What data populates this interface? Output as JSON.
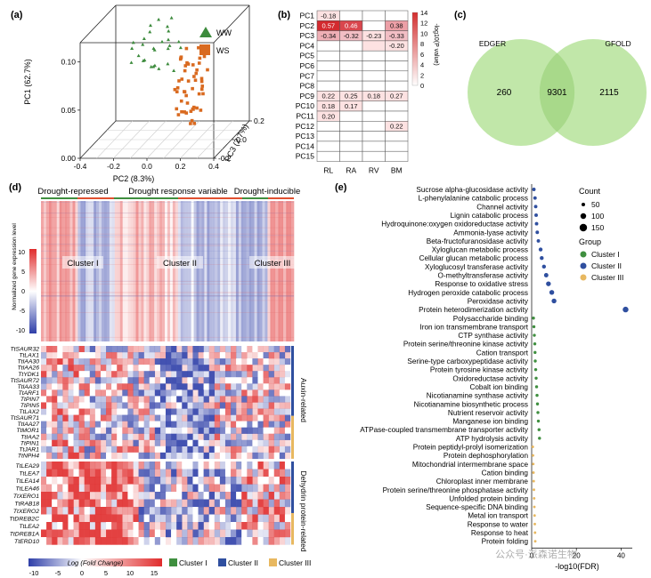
{
  "panel_labels": {
    "a": "(a)",
    "b": "(b)",
    "c": "(c)",
    "d": "(d)",
    "e": "(e)"
  },
  "colors": {
    "ww": "#3d8b3d",
    "ws": "#d96a20",
    "cluster1": "#3f8f3f",
    "cluster2": "#2f4f9f",
    "cluster3": "#e8b860",
    "venn": "#b6e39a"
  },
  "chart_data": [
    {
      "type": "scatter",
      "panel": "a",
      "xlabel": "PC2 (8.3%)",
      "ylabel": "PC1 (62.7%)",
      "zlabel": "PC3 (2.7%)",
      "xticks": [
        "-0.4",
        "-0.2",
        "0.0",
        "0.2",
        "0.4"
      ],
      "yticks": [
        "0.00",
        "0.05",
        "0.10"
      ],
      "zticks": [
        "-0.2",
        "0.0",
        "0.2"
      ],
      "series": [
        {
          "name": "WW",
          "marker": "triangle",
          "points": [
            [
              -0.1,
              0.11,
              0.02
            ],
            [
              -0.15,
              0.1,
              0.05
            ],
            [
              -0.05,
              0.095,
              -0.02
            ],
            [
              -0.12,
              0.085,
              0.1
            ],
            [
              -0.02,
              0.105,
              0.08
            ],
            [
              -0.08,
              0.09,
              0.12
            ],
            [
              0.0,
              0.1,
              0.04
            ],
            [
              -0.18,
              0.09,
              0.09
            ],
            [
              -0.06,
              0.08,
              0.15
            ],
            [
              -0.1,
              0.07,
              0.06
            ],
            [
              -0.2,
              0.08,
              0.0
            ],
            [
              -0.14,
              0.065,
              0.11
            ],
            [
              -0.04,
              0.085,
              0.13
            ],
            [
              -0.09,
              0.115,
              0.1
            ],
            [
              0.02,
              0.09,
              0.12
            ],
            [
              -0.16,
              0.105,
              0.14
            ],
            [
              -0.22,
              0.095,
              0.06
            ],
            [
              -0.07,
              0.075,
              0.02
            ],
            [
              -0.11,
              0.06,
              0.14
            ],
            [
              -0.03,
              0.07,
              0.09
            ],
            [
              -0.25,
              0.085,
              0.1
            ],
            [
              -0.13,
              0.092,
              -0.05
            ],
            [
              0.01,
              0.08,
              0.16
            ],
            [
              -0.05,
              0.11,
              0.17
            ],
            [
              -0.19,
              0.07,
              0.13
            ],
            [
              -0.08,
              0.1,
              0.18
            ],
            [
              -0.15,
              0.078,
              0.04
            ],
            [
              -0.01,
              0.06,
              0.12
            ]
          ]
        },
        {
          "name": "WS",
          "marker": "square",
          "points": [
            [
              0.05,
              0.08,
              0.15
            ],
            [
              0.08,
              0.07,
              0.1
            ],
            [
              0.1,
              0.06,
              0.2
            ],
            [
              0.12,
              0.05,
              0.12
            ],
            [
              0.06,
              0.055,
              0.08
            ],
            [
              0.14,
              0.04,
              0.16
            ],
            [
              0.09,
              0.045,
              0.05
            ],
            [
              0.11,
              0.03,
              0.18
            ],
            [
              0.07,
              0.035,
              0.11
            ],
            [
              0.13,
              0.025,
              0.07
            ],
            [
              0.04,
              0.06,
              0.19
            ],
            [
              0.15,
              0.05,
              0.03
            ],
            [
              0.1,
              0.02,
              0.14
            ],
            [
              0.03,
              0.045,
              0.09
            ],
            [
              0.08,
              0.015,
              0.17
            ],
            [
              0.12,
              0.065,
              0.22
            ],
            [
              0.06,
              0.03,
              0.02
            ],
            [
              0.16,
              0.035,
              0.13
            ],
            [
              0.05,
              0.02,
              0.06
            ],
            [
              0.09,
              0.075,
              0.21
            ],
            [
              0.11,
              0.01,
              0.1
            ],
            [
              0.02,
              0.07,
              0.14
            ],
            [
              0.14,
              0.06,
              0.09
            ],
            [
              0.07,
              0.05,
              0.23
            ],
            [
              0.1,
              0.04,
              0.0
            ],
            [
              0.13,
              0.015,
              0.16
            ],
            [
              0.04,
              0.035,
              0.15
            ],
            [
              0.08,
              0.025,
              0.04
            ],
            [
              0.12,
              0.045,
              0.19
            ],
            [
              0.06,
              0.065,
              0.12
            ],
            [
              0.15,
              0.025,
              0.08
            ],
            [
              0.03,
              0.055,
              0.17
            ],
            [
              0.09,
              0.005,
              0.12
            ],
            [
              0.11,
              0.055,
              0.06
            ],
            [
              0.05,
              0.01,
              0.2
            ],
            [
              0.07,
              0.08,
              0.05
            ],
            [
              0.13,
              0.07,
              0.15
            ],
            [
              0.1,
              0.03,
              0.23
            ],
            [
              0.08,
              0.06,
              0.01
            ],
            [
              0.02,
              0.04,
              0.1
            ],
            [
              0.16,
              0.055,
              0.18
            ],
            [
              0.06,
              0.015,
              0.13
            ],
            [
              0.12,
              0.035,
              0.03
            ],
            [
              0.04,
              0.075,
              0.11
            ],
            [
              0.09,
              0.05,
              0.16
            ],
            [
              0.14,
              0.01,
              0.07
            ],
            [
              0.11,
              0.04,
              0.21
            ],
            [
              0.07,
              0.02,
              0.09
            ],
            [
              0.05,
              0.05,
              0.02
            ],
            [
              0.1,
              0.065,
              0.13
            ]
          ]
        }
      ],
      "legend": [
        "WW",
        "WS"
      ]
    },
    {
      "type": "heatmap",
      "panel": "b",
      "rows": [
        "PC1",
        "PC2",
        "PC3",
        "PC4",
        "PC5",
        "PC6",
        "PC7",
        "PC8",
        "PC9",
        "PC10",
        "PC11",
        "PC12",
        "PC13",
        "PC14",
        "PC15"
      ],
      "cols": [
        "RL",
        "RA",
        "RV",
        "BM"
      ],
      "values": [
        [
          -0.18,
          null,
          null,
          null
        ],
        [
          0.57,
          0.46,
          null,
          0.38
        ],
        [
          -0.34,
          -0.32,
          -0.23,
          -0.33
        ],
        [
          null,
          null,
          null,
          -0.2
        ],
        [
          null,
          null,
          null,
          null
        ],
        [
          null,
          null,
          null,
          null
        ],
        [
          null,
          null,
          null,
          null
        ],
        [
          null,
          null,
          null,
          null
        ],
        [
          0.22,
          0.25,
          0.18,
          0.27
        ],
        [
          0.18,
          0.17,
          null,
          null
        ],
        [
          0.2,
          null,
          null,
          null
        ],
        [
          null,
          null,
          null,
          0.22
        ],
        [
          null,
          null,
          null,
          null
        ],
        [
          null,
          null,
          null,
          null
        ],
        [
          null,
          null,
          null,
          null
        ]
      ],
      "labels": [
        [
          "-0.18",
          "",
          "",
          ""
        ],
        [
          "0.57",
          "0.46",
          "",
          "0.38"
        ],
        [
          "-0.34",
          "-0.32",
          "-0.23",
          "-0.33"
        ],
        [
          "",
          "",
          "",
          "-0.20"
        ],
        [
          "",
          "",
          "",
          ""
        ],
        [
          "",
          "",
          "",
          ""
        ],
        [
          "",
          "",
          "",
          ""
        ],
        [
          "",
          "",
          "",
          ""
        ],
        [
          "0.22",
          "0.25",
          "0.18",
          "0.27"
        ],
        [
          "0.18",
          "0.17",
          "",
          ""
        ],
        [
          "0.20",
          "",
          "",
          ""
        ],
        [
          "",
          "",
          "",
          "0.22"
        ],
        [
          "",
          "",
          "",
          ""
        ],
        [
          "",
          "",
          "",
          ""
        ],
        [
          "",
          "",
          "",
          ""
        ]
      ],
      "neglog10p": [
        [
          3,
          0,
          0,
          0
        ],
        [
          14,
          12,
          0,
          6
        ],
        [
          5,
          4,
          2,
          4
        ],
        [
          0,
          0,
          1,
          2
        ],
        [
          0,
          0,
          0,
          0
        ],
        [
          0,
          0,
          0,
          0
        ],
        [
          0,
          0,
          0,
          0
        ],
        [
          0,
          0,
          0,
          0
        ],
        [
          2,
          2,
          1,
          2
        ],
        [
          1,
          1,
          0,
          0
        ],
        [
          2,
          0,
          0,
          0
        ],
        [
          0,
          0,
          0,
          2
        ],
        [
          0,
          0,
          0,
          0
        ],
        [
          0,
          0,
          0,
          0
        ],
        [
          0,
          0,
          0,
          0
        ]
      ],
      "colorbar_label": "-log10(P value)",
      "colorbar_ticks": [
        "14",
        "12",
        "10",
        "8",
        "6",
        "4",
        "2",
        "0"
      ]
    },
    {
      "type": "venn",
      "panel": "c",
      "sets": [
        "EDGER",
        "GFOLD"
      ],
      "left_only": "260",
      "both": "9301",
      "right_only": "2115"
    },
    {
      "type": "heatmap",
      "panel": "d",
      "groups": [
        "Drought-repressed",
        "Drought response variable",
        "Drought-inducible"
      ],
      "clusters": [
        "Cluster I",
        "Cluster II",
        "Cluster III"
      ],
      "colorbar_label": "Normalized gene expression level",
      "colorbar_ticks": [
        "10",
        "5",
        "0",
        "-5",
        "-10"
      ],
      "auxin_genes": [
        "TtSAUR32",
        "TtLAX1",
        "TtIAA30",
        "TtIAA26",
        "TtYDK1",
        "TtSAUR72",
        "TtIAA33",
        "TtARF1",
        "TtPIN7",
        "TtPIN5",
        "TtLAX2",
        "TtSAUR71",
        "TtIAA27",
        "TtMOR1",
        "TtIAA2",
        "TtPIN1",
        "TtJAR1",
        "TtNPH4"
      ],
      "auxin_label": "Auxin-related",
      "dehydrin_genes": [
        "TtLEA29",
        "TtLEA7",
        "TtLEA14",
        "TtLEA46",
        "TtXERO1",
        "TtRAB18",
        "TtXERO2",
        "TtDREB2C",
        "TtLEA2",
        "TtDREB1A",
        "TtERD10"
      ],
      "dehydrin_label": "Dehydrin protein-related",
      "fold_label": "Log (Fold Change)",
      "fold_ticks": [
        "-10",
        "-5",
        "0",
        "5",
        "10",
        "15"
      ],
      "legend": [
        "Cluster I",
        "Cluster II",
        "Cluster III"
      ]
    },
    {
      "type": "scatter",
      "panel": "e",
      "xlabel": "-log10(FDR)",
      "xticks": [
        "0",
        "20",
        "40"
      ],
      "xlim": [
        0,
        45
      ],
      "terms": [
        {
          "term": "Sucrose alpha-glucosidase activity",
          "cluster": 2,
          "x": 1.0,
          "count": 30
        },
        {
          "term": "L-phenylalanine catabolic process",
          "cluster": 2,
          "x": 1.5,
          "count": 30
        },
        {
          "term": "Channel activity",
          "cluster": 2,
          "x": 1.8,
          "count": 30
        },
        {
          "term": "Lignin catabolic process",
          "cluster": 2,
          "x": 2.0,
          "count": 30
        },
        {
          "term": "Hydroquinone:oxygen oxidoreductase activity",
          "cluster": 2,
          "x": 2.2,
          "count": 30
        },
        {
          "term": "Ammonia-lyase activity",
          "cluster": 2,
          "x": 2.5,
          "count": 30
        },
        {
          "term": "Beta-fructofuranosidase activity",
          "cluster": 2,
          "x": 3.0,
          "count": 30
        },
        {
          "term": "Xyloglucan metabolic process",
          "cluster": 2,
          "x": 4.0,
          "count": 40
        },
        {
          "term": "Cellular glucan metabolic process",
          "cluster": 2,
          "x": 4.5,
          "count": 40
        },
        {
          "term": "Xyloglucosyl transferase activity",
          "cluster": 2,
          "x": 5.5,
          "count": 40
        },
        {
          "term": "O-methyltransferase activity",
          "cluster": 2,
          "x": 6.5,
          "count": 50
        },
        {
          "term": "Response to oxidative stress",
          "cluster": 2,
          "x": 7.5,
          "count": 60
        },
        {
          "term": "Hydrogen peroxide catabolic process",
          "cluster": 2,
          "x": 9.0,
          "count": 60
        },
        {
          "term": "Peroxidase activity",
          "cluster": 2,
          "x": 10.0,
          "count": 60
        },
        {
          "term": "Protein heterodimerization activity",
          "cluster": 2,
          "x": 42.0,
          "count": 80
        },
        {
          "term": "Polysaccharide binding",
          "cluster": 1,
          "x": 0.8,
          "count": 20
        },
        {
          "term": "Iron ion transmembrane transport",
          "cluster": 1,
          "x": 1.0,
          "count": 20
        },
        {
          "term": "CTP synthase activity",
          "cluster": 1,
          "x": 1.2,
          "count": 20
        },
        {
          "term": "Protein serine/threonine kinase activity",
          "cluster": 1,
          "x": 1.4,
          "count": 20
        },
        {
          "term": "Cation transport",
          "cluster": 1,
          "x": 1.5,
          "count": 20
        },
        {
          "term": "Serine-type carboxypeptidase activity",
          "cluster": 1,
          "x": 1.6,
          "count": 20
        },
        {
          "term": "Protein tyrosine kinase activity",
          "cluster": 1,
          "x": 1.8,
          "count": 20
        },
        {
          "term": "Oxidoreductase activity",
          "cluster": 1,
          "x": 2.0,
          "count": 20
        },
        {
          "term": "Cobalt ion binding",
          "cluster": 1,
          "x": 2.2,
          "count": 20
        },
        {
          "term": "Nicotianamine synthase activity",
          "cluster": 1,
          "x": 2.4,
          "count": 20
        },
        {
          "term": "Nicotianamine biosynthetic process",
          "cluster": 1,
          "x": 2.6,
          "count": 20
        },
        {
          "term": "Nutrient reservoir activity",
          "cluster": 1,
          "x": 2.8,
          "count": 20
        },
        {
          "term": "Manganese ion binding",
          "cluster": 1,
          "x": 3.0,
          "count": 20
        },
        {
          "term": "ATPase-coupled transmembrane transporter activity",
          "cluster": 1,
          "x": 3.3,
          "count": 20
        },
        {
          "term": "ATP hydrolysis activity",
          "cluster": 1,
          "x": 3.5,
          "count": 20
        },
        {
          "term": "Protein peptidyl-prolyl isomerization",
          "cluster": 3,
          "x": 0.5,
          "count": 10
        },
        {
          "term": "Protein dephosphorylation",
          "cluster": 3,
          "x": 0.6,
          "count": 10
        },
        {
          "term": "Mitochondrial intermembrane space",
          "cluster": 3,
          "x": 0.7,
          "count": 10
        },
        {
          "term": "Cation binding",
          "cluster": 3,
          "x": 0.8,
          "count": 10
        },
        {
          "term": "Chloroplast inner membrane",
          "cluster": 3,
          "x": 0.9,
          "count": 10
        },
        {
          "term": "Protein serine/threonine phosphatase activity",
          "cluster": 3,
          "x": 1.0,
          "count": 10
        },
        {
          "term": "Unfolded protein binding",
          "cluster": 3,
          "x": 1.1,
          "count": 10
        },
        {
          "term": "Sequence-specific DNA binding",
          "cluster": 3,
          "x": 1.2,
          "count": 10
        },
        {
          "term": "Metal ion transport",
          "cluster": 3,
          "x": 1.3,
          "count": 10
        },
        {
          "term": "Response to water",
          "cluster": 3,
          "x": 1.4,
          "count": 10
        },
        {
          "term": "Response to heat",
          "cluster": 3,
          "x": 1.5,
          "count": 10
        },
        {
          "term": "Protein folding",
          "cluster": 3,
          "x": 1.6,
          "count": 10
        }
      ],
      "count_legend_title": "Count",
      "count_legend": [
        "50",
        "100",
        "150"
      ],
      "group_legend_title": "Group",
      "group_legend": [
        "Cluster I",
        "Cluster II",
        "Cluster III"
      ]
    }
  ],
  "watermark": "公众号·派森诺生物"
}
